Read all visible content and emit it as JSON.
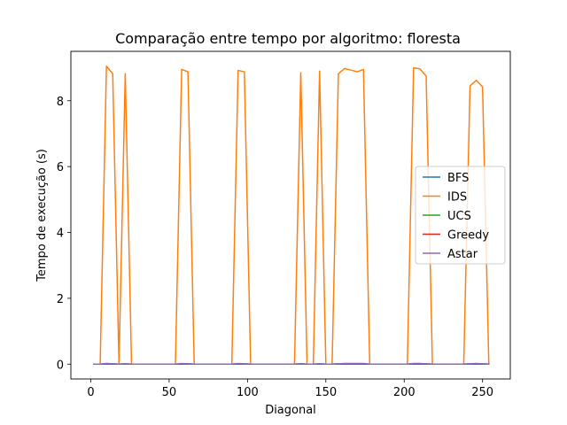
{
  "chart_data": {
    "type": "line",
    "title": "Comparação entre tempo por algoritmo: floresta",
    "xlabel": "Diagonal",
    "ylabel": "Tempo de execução (s)",
    "xlim": [
      -12.7,
      267.7
    ],
    "ylim": [
      -0.45,
      9.5
    ],
    "xticks": [
      0,
      50,
      100,
      150,
      200,
      250
    ],
    "yticks": [
      0,
      2,
      4,
      6,
      8
    ],
    "grid": false,
    "legend_position": "center-right",
    "series": [
      {
        "name": "BFS",
        "color": "#1f77b4",
        "x": [
          2,
          6,
          10,
          14,
          18,
          22,
          26,
          30,
          34,
          38,
          42,
          46,
          50,
          54,
          58,
          62,
          66,
          70,
          74,
          78,
          82,
          86,
          90,
          94,
          98,
          102,
          106,
          110,
          114,
          118,
          122,
          126,
          130,
          134,
          138,
          142,
          146,
          150,
          154,
          158,
          162,
          166,
          170,
          174,
          178,
          182,
          186,
          190,
          194,
          198,
          202,
          206,
          210,
          214,
          218,
          222,
          226,
          230,
          234,
          238,
          242,
          246,
          250,
          254
        ],
        "y": [
          0.0,
          0.0,
          0.01,
          0.01,
          0.0,
          0.01,
          0.0,
          0.0,
          0.0,
          0.0,
          0.0,
          0.0,
          0.0,
          0.0,
          0.01,
          0.01,
          0.0,
          0.0,
          0.0,
          0.0,
          0.0,
          0.0,
          0.0,
          0.01,
          0.01,
          0.0,
          0.0,
          0.0,
          0.0,
          0.0,
          0.0,
          0.0,
          0.0,
          0.01,
          0.0,
          0.0,
          0.01,
          0.0,
          0.0,
          0.01,
          0.01,
          0.01,
          0.01,
          0.01,
          0.0,
          0.0,
          0.0,
          0.0,
          0.0,
          0.0,
          0.0,
          0.01,
          0.01,
          0.01,
          0.0,
          0.0,
          0.0,
          0.0,
          0.0,
          0.0,
          0.01,
          0.01,
          0.01,
          0.0
        ]
      },
      {
        "name": "IDS",
        "color": "#ff7f0e",
        "x": [
          2,
          6,
          10,
          14,
          18,
          22,
          26,
          30,
          34,
          38,
          42,
          46,
          50,
          54,
          58,
          62,
          66,
          70,
          74,
          78,
          82,
          86,
          90,
          94,
          98,
          102,
          106,
          110,
          114,
          118,
          122,
          126,
          130,
          134,
          138,
          142,
          146,
          150,
          154,
          158,
          162,
          166,
          170,
          174,
          178,
          182,
          186,
          190,
          194,
          198,
          202,
          206,
          210,
          214,
          218,
          222,
          226,
          230,
          234,
          238,
          242,
          246,
          250,
          254
        ],
        "y": [
          0.0,
          0.0,
          9.05,
          8.82,
          0.0,
          8.82,
          0.0,
          0.0,
          0.0,
          0.0,
          0.0,
          0.0,
          0.0,
          0.0,
          8.95,
          8.88,
          0.0,
          0.0,
          0.0,
          0.0,
          0.0,
          0.0,
          0.0,
          8.92,
          8.88,
          0.0,
          0.0,
          0.0,
          0.0,
          0.0,
          0.0,
          0.0,
          0.0,
          8.85,
          0.0,
          0.0,
          8.9,
          0.0,
          0.0,
          8.82,
          8.98,
          8.93,
          8.88,
          8.95,
          0.0,
          0.0,
          0.0,
          0.0,
          0.0,
          0.0,
          0.0,
          9.0,
          8.97,
          8.75,
          0.0,
          0.0,
          0.0,
          0.0,
          0.0,
          0.0,
          8.45,
          8.62,
          8.42,
          0.0
        ]
      },
      {
        "name": "UCS",
        "color": "#2ca02c",
        "x": [
          2,
          6,
          10,
          14,
          18,
          22,
          26,
          30,
          34,
          38,
          42,
          46,
          50,
          54,
          58,
          62,
          66,
          70,
          74,
          78,
          82,
          86,
          90,
          94,
          98,
          102,
          106,
          110,
          114,
          118,
          122,
          126,
          130,
          134,
          138,
          142,
          146,
          150,
          154,
          158,
          162,
          166,
          170,
          174,
          178,
          182,
          186,
          190,
          194,
          198,
          202,
          206,
          210,
          214,
          218,
          222,
          226,
          230,
          234,
          238,
          242,
          246,
          250,
          254
        ],
        "y": [
          0.0,
          0.0,
          0.01,
          0.01,
          0.0,
          0.01,
          0.0,
          0.0,
          0.0,
          0.0,
          0.0,
          0.0,
          0.0,
          0.0,
          0.01,
          0.01,
          0.0,
          0.0,
          0.0,
          0.0,
          0.0,
          0.0,
          0.0,
          0.01,
          0.01,
          0.0,
          0.0,
          0.0,
          0.0,
          0.0,
          0.0,
          0.0,
          0.0,
          0.01,
          0.0,
          0.0,
          0.01,
          0.0,
          0.0,
          0.01,
          0.01,
          0.01,
          0.01,
          0.01,
          0.0,
          0.0,
          0.0,
          0.0,
          0.0,
          0.0,
          0.0,
          0.01,
          0.01,
          0.01,
          0.0,
          0.0,
          0.0,
          0.0,
          0.0,
          0.0,
          0.01,
          0.01,
          0.01,
          0.0
        ]
      },
      {
        "name": "Greedy",
        "color": "#d62728",
        "x": [
          2,
          6,
          10,
          14,
          18,
          22,
          26,
          30,
          34,
          38,
          42,
          46,
          50,
          54,
          58,
          62,
          66,
          70,
          74,
          78,
          82,
          86,
          90,
          94,
          98,
          102,
          106,
          110,
          114,
          118,
          122,
          126,
          130,
          134,
          138,
          142,
          146,
          150,
          154,
          158,
          162,
          166,
          170,
          174,
          178,
          182,
          186,
          190,
          194,
          198,
          202,
          206,
          210,
          214,
          218,
          222,
          226,
          230,
          234,
          238,
          242,
          246,
          250,
          254
        ],
        "y": [
          0.0,
          0.0,
          0.0,
          0.0,
          0.0,
          0.0,
          0.0,
          0.0,
          0.0,
          0.0,
          0.0,
          0.0,
          0.0,
          0.0,
          0.0,
          0.0,
          0.0,
          0.0,
          0.0,
          0.0,
          0.0,
          0.0,
          0.0,
          0.0,
          0.0,
          0.0,
          0.0,
          0.0,
          0.0,
          0.0,
          0.0,
          0.0,
          0.0,
          0.0,
          0.0,
          0.0,
          0.0,
          0.0,
          0.0,
          0.0,
          0.0,
          0.0,
          0.0,
          0.0,
          0.0,
          0.0,
          0.0,
          0.0,
          0.0,
          0.0,
          0.0,
          0.0,
          0.0,
          0.0,
          0.0,
          0.0,
          0.0,
          0.0,
          0.0,
          0.0,
          0.0,
          0.0,
          0.0,
          0.0
        ]
      },
      {
        "name": "Astar",
        "color": "#9467bd",
        "x": [
          2,
          6,
          10,
          14,
          18,
          22,
          26,
          30,
          34,
          38,
          42,
          46,
          50,
          54,
          58,
          62,
          66,
          70,
          74,
          78,
          82,
          86,
          90,
          94,
          98,
          102,
          106,
          110,
          114,
          118,
          122,
          126,
          130,
          134,
          138,
          142,
          146,
          150,
          154,
          158,
          162,
          166,
          170,
          174,
          178,
          182,
          186,
          190,
          194,
          198,
          202,
          206,
          210,
          214,
          218,
          222,
          226,
          230,
          234,
          238,
          242,
          246,
          250,
          254
        ],
        "y": [
          0.0,
          0.0,
          0.02,
          0.01,
          0.0,
          0.01,
          0.0,
          0.0,
          0.0,
          0.0,
          0.0,
          0.0,
          0.0,
          0.0,
          0.02,
          0.01,
          0.0,
          0.0,
          0.0,
          0.0,
          0.0,
          0.0,
          0.0,
          0.02,
          0.01,
          0.0,
          0.0,
          0.0,
          0.0,
          0.0,
          0.0,
          0.0,
          0.0,
          0.01,
          0.0,
          0.0,
          0.01,
          0.0,
          0.0,
          0.01,
          0.02,
          0.02,
          0.02,
          0.02,
          0.0,
          0.0,
          0.0,
          0.0,
          0.0,
          0.0,
          0.0,
          0.02,
          0.02,
          0.01,
          0.0,
          0.0,
          0.0,
          0.0,
          0.0,
          0.0,
          0.01,
          0.02,
          0.01,
          0.0
        ]
      }
    ]
  }
}
